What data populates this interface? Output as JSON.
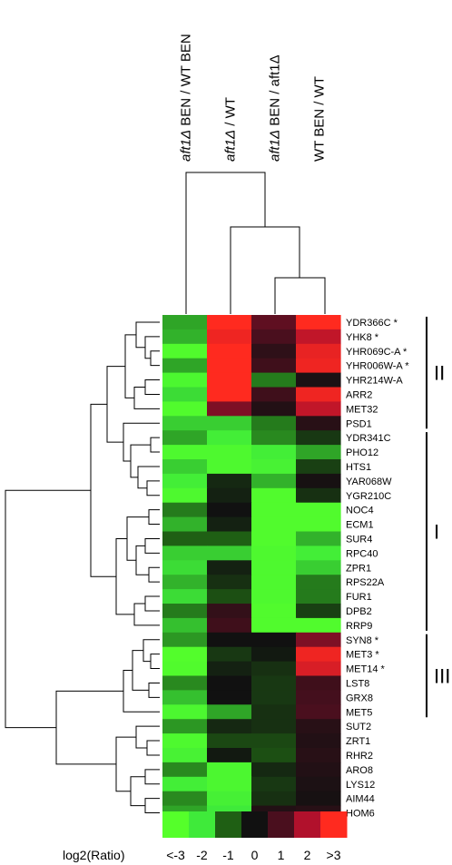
{
  "chart_data": {
    "type": "heatmap",
    "columns": [
      {
        "prefix": "",
        "italic": "aft1Δ",
        "suffix": " BEN / WT BEN"
      },
      {
        "prefix": "",
        "italic": "aft1Δ",
        "suffix": " / WT"
      },
      {
        "prefix": "",
        "italic": "aft1Δ",
        "suffix": " BEN / aft1Δ"
      },
      {
        "prefix": "WT BEN / WT",
        "italic": "",
        "suffix": ""
      }
    ],
    "rows": [
      "YDR366C *",
      "YHK8 *",
      "YHR069C-A *",
      "YHR006W-A *",
      "YHR214W-A",
      "ARR2",
      "MET32",
      "PSD1",
      "YDR341C",
      "PHO12",
      "HTS1",
      "YAR068W",
      "YGR210C",
      "NOC4",
      "ECM1",
      "SUR4",
      "RPC40",
      "ZPR1",
      "RPS22A",
      "FUR1",
      "DPB2",
      "RRP9",
      "SYN8 *",
      "MET3 *",
      "MET14 *",
      "LST8",
      "GRX8",
      "MET5",
      "SUT2",
      "ZRT1",
      "RHR2",
      "ARO8",
      "LYS12",
      "AIM44",
      "HOM6"
    ],
    "values": [
      [
        -1.5,
        3.2,
        1.2,
        3.1
      ],
      [
        -1.6,
        2.8,
        1.0,
        2.2
      ],
      [
        -2.8,
        3.2,
        0.5,
        2.7
      ],
      [
        -1.5,
        3.2,
        0.8,
        2.8
      ],
      [
        -2.6,
        3.2,
        -1.2,
        0.2
      ],
      [
        -1.9,
        3.2,
        0.8,
        2.8
      ],
      [
        -2.8,
        1.5,
        0.3,
        2.2
      ],
      [
        -1.8,
        -1.8,
        -1.2,
        0.4
      ],
      [
        -1.5,
        -2.2,
        -1.3,
        -0.5
      ],
      [
        -2.7,
        -2.7,
        -2.2,
        -1.5
      ],
      [
        -1.8,
        -2.7,
        -2.4,
        -0.6
      ],
      [
        -2.2,
        -0.3,
        -1.6,
        0.1
      ],
      [
        -2.7,
        -0.2,
        -2.8,
        -0.4
      ],
      [
        -1.2,
        0.0,
        -2.8,
        -2.8
      ],
      [
        -1.6,
        -0.2,
        -2.8,
        -2.8
      ],
      [
        -1.0,
        -1.0,
        -2.8,
        -1.6
      ],
      [
        -1.8,
        -1.8,
        -2.7,
        -2.2
      ],
      [
        -1.9,
        -0.2,
        -2.7,
        -1.8
      ],
      [
        -1.6,
        -0.4,
        -2.7,
        -1.2
      ],
      [
        -1.9,
        -0.8,
        -2.7,
        -1.2
      ],
      [
        -1.2,
        0.6,
        -2.8,
        -0.6
      ],
      [
        -1.7,
        0.8,
        -2.8,
        -2.8
      ],
      [
        -1.4,
        0.0,
        0.0,
        1.5
      ],
      [
        -2.9,
        -0.5,
        -0.1,
        2.8
      ],
      [
        -2.8,
        -0.2,
        -0.4,
        2.5
      ],
      [
        -1.3,
        0.0,
        -0.5,
        0.8
      ],
      [
        -1.7,
        0.0,
        -0.5,
        0.9
      ],
      [
        -2.6,
        -1.5,
        -0.4,
        1.0
      ],
      [
        -1.4,
        -0.3,
        -0.4,
        0.4
      ],
      [
        -2.7,
        -0.7,
        -0.7,
        0.3
      ],
      [
        -2.4,
        -0.1,
        -0.8,
        0.4
      ],
      [
        -1.3,
        -2.6,
        -0.3,
        0.3
      ],
      [
        -2.2,
        -2.6,
        -0.5,
        0.2
      ],
      [
        -1.3,
        -2.3,
        -0.4,
        0.1
      ],
      [
        -1.5,
        -2.0,
        0.3,
        0.4
      ]
    ],
    "scale": {
      "min": -3,
      "max": 3,
      "label": "log2(Ratio)",
      "ticks": [
        "<-3",
        "-2",
        "-1",
        "0",
        "1",
        "2",
        ">3"
      ],
      "colors": [
        "#55ff2a",
        "#3fea3a",
        "#1f5f14",
        "#111111",
        "#4a0f1e",
        "#b1112c",
        "#ff2a1f"
      ]
    },
    "clusters": [
      {
        "label": "II",
        "from": "YDR366C *",
        "to": "PSD1"
      },
      {
        "label": "I",
        "from": "YDR341C",
        "to": "RRP9"
      },
      {
        "label": "III",
        "from": "SYN8 *",
        "to": "MET5"
      }
    ]
  }
}
